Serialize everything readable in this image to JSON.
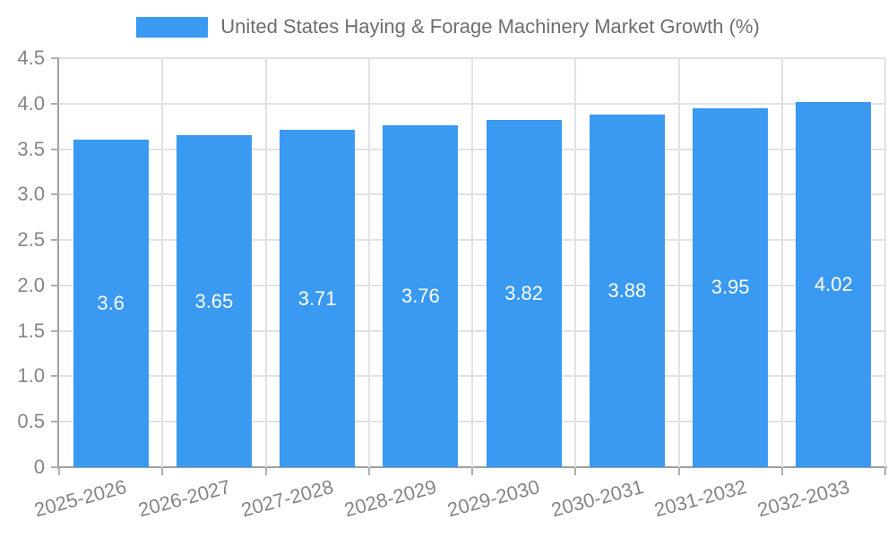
{
  "chart_data": {
    "type": "bar",
    "title": "United States Haying & Forage Machinery Market Growth (%)",
    "legend_position": "top",
    "categories": [
      "2025-2026",
      "2026-2027",
      "2027-2028",
      "2028-2029",
      "2029-2030",
      "2030-2031",
      "2031-2032",
      "2032-2033"
    ],
    "values": [
      3.6,
      3.65,
      3.71,
      3.76,
      3.82,
      3.88,
      3.95,
      4.02
    ],
    "value_labels": [
      "3.6",
      "3.65",
      "3.71",
      "3.76",
      "3.82",
      "3.88",
      "3.95",
      "4.02"
    ],
    "ylim": [
      0,
      4.5
    ],
    "y_tick_values": [
      0,
      0.5,
      1,
      1.5,
      2,
      2.5,
      3,
      3.5,
      4,
      4.5
    ],
    "y_tick_labels": [
      "0",
      "0.5",
      "1.0",
      "1.5",
      "2.0",
      "2.5",
      "3.0",
      "3.5",
      "4.0",
      "4.5"
    ],
    "grid": true,
    "bar_color": "#3a99f0",
    "value_label_color": "#ffffff",
    "grid_color": "#e2e2e2",
    "axis_color": "#9e9e9e",
    "tick_color": "#aeaeae",
    "tick_label_color": "#858585",
    "legend_text_color": "#6e6e6e"
  }
}
